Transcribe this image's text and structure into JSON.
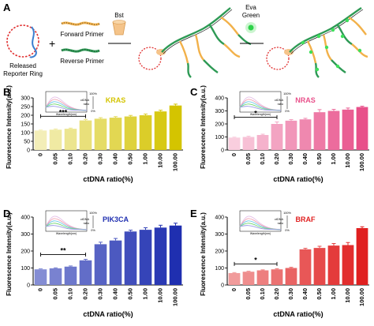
{
  "schematic": {
    "panel_letter": "A",
    "released_label_1": "Released",
    "released_label_2": "Reporter Ring",
    "plus": "+",
    "forward_primer": "Forward Primer",
    "reverse_primer": "Reverse Primer",
    "bst": "Bst",
    "eva_green_1": "Eva",
    "eva_green_2": "Green"
  },
  "colors": {
    "KRAS": "#d4c400",
    "NRAS": "#e8508a",
    "PIK3CA": "#1f2fb0",
    "BRAF": "#e02020"
  },
  "chart_data": [
    {
      "type": "bar",
      "panel": "B",
      "title": "KRAS",
      "ylabel": "Fluorescence Intensity(a.u.)",
      "xlabel": "ctDNA ratio(%)",
      "categories": [
        "0",
        "0.05",
        "0.10",
        "0.20",
        "0.30",
        "0.40",
        "0.50",
        "1.00",
        "10.00",
        "100.00"
      ],
      "values": [
        112,
        117,
        122,
        170,
        180,
        186,
        193,
        200,
        222,
        256
      ],
      "errors": [
        3,
        4,
        4,
        6,
        6,
        6,
        6,
        7,
        7,
        8
      ],
      "yticks": [
        0,
        50,
        100,
        150,
        200,
        250,
        300
      ],
      "ylim": [
        0,
        300
      ],
      "significance": "***",
      "inset": {
        "xlabel": "Wavelength(nm)",
        "legend_top": "100%",
        "legend_label_1": "ctDNA",
        "legend_label_2": "ratio",
        "legend_bottom": "0%"
      }
    },
    {
      "type": "bar",
      "panel": "C",
      "title": "NRAS",
      "ylabel": "Fluorescence Intensity(a.u.)",
      "xlabel": "ctDNA ratio(%)",
      "categories": [
        "0",
        "0.05",
        "0.10",
        "0.20",
        "0.30",
        "0.40",
        "0.50",
        "1.00",
        "10.00",
        "100.00"
      ],
      "values": [
        95,
        100,
        115,
        200,
        225,
        235,
        290,
        300,
        310,
        330
      ],
      "errors": [
        4,
        6,
        6,
        15,
        8,
        8,
        20,
        12,
        12,
        6
      ],
      "yticks": [
        0,
        100,
        200,
        300,
        400
      ],
      "ylim": [
        0,
        400
      ],
      "significance": "*",
      "inset": {
        "xlabel": "Wavelength(nm)",
        "legend_top": "100%",
        "legend_label_1": "ctDNA",
        "legend_label_2": "ratio",
        "legend_bottom": "0%"
      }
    },
    {
      "type": "bar",
      "panel": "D",
      "title": "PIK3CA",
      "ylabel": "Fluorescence Intensity(a.u.)",
      "xlabel": "ctDNA ratio(%)",
      "categories": [
        "0",
        "0.05",
        "0.10",
        "0.20",
        "0.30",
        "0.40",
        "0.50",
        "1.00",
        "10.00",
        "100.00"
      ],
      "values": [
        92,
        98,
        108,
        145,
        240,
        262,
        315,
        325,
        338,
        350
      ],
      "errors": [
        3,
        3,
        4,
        6,
        12,
        12,
        8,
        12,
        14,
        14
      ],
      "yticks": [
        0,
        100,
        200,
        300,
        400
      ],
      "ylim": [
        0,
        400
      ],
      "significance": "**",
      "inset": {
        "xlabel": "Wavelength(nm)",
        "legend_top": "100%",
        "legend_label_1": "ctDNA",
        "legend_label_2": "ratio",
        "legend_bottom": "0%"
      }
    },
    {
      "type": "bar",
      "panel": "E",
      "title": "BRAF",
      "ylabel": "Fluorescence Intensity(a.u.)",
      "xlabel": "ctDNA ratio(%)",
      "categories": [
        "0",
        "0.05",
        "0.10",
        "0.20",
        "0.30",
        "0.40",
        "0.50",
        "1.00",
        "10.00",
        "100.00"
      ],
      "values": [
        70,
        78,
        86,
        92,
        100,
        210,
        218,
        232,
        235,
        335
      ],
      "errors": [
        3,
        3,
        3,
        4,
        4,
        6,
        10,
        12,
        15,
        8
      ],
      "yticks": [
        0,
        100,
        200,
        300,
        400
      ],
      "ylim": [
        0,
        400
      ],
      "significance": "*",
      "inset": {
        "xlabel": "Wavelength(nm)",
        "legend_top": "100%",
        "legend_label_1": "ctDNA",
        "legend_label_2": "ratio",
        "legend_bottom": "0%"
      }
    }
  ]
}
